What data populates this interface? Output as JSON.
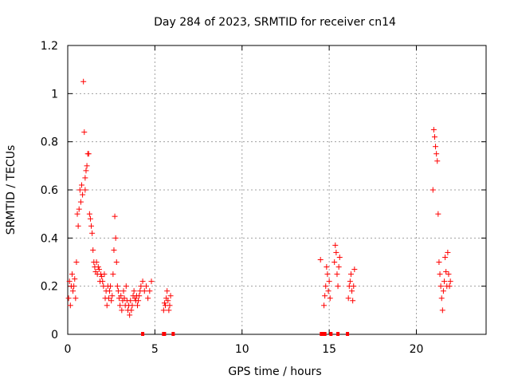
{
  "chart_data": {
    "type": "scatter",
    "title": "Day 284 of 2023, SRMTID for receiver cn14",
    "xlabel": "GPS time / hours",
    "ylabel": "SRMTID / TECUs",
    "xlim": [
      0,
      24
    ],
    "ylim": [
      0,
      1.2
    ],
    "grid": true,
    "legend": "none",
    "marker": "+",
    "marker_color": "#ff0000",
    "x_ticks": [
      0,
      5,
      10,
      15,
      20
    ],
    "x_tick_labels": [
      "0",
      "5",
      "10",
      "15",
      "20"
    ],
    "y_ticks": [
      0,
      0.2,
      0.4,
      0.6,
      0.8,
      1.0,
      1.2
    ],
    "y_tick_labels": [
      "0",
      "0.2",
      "0.4",
      "0.6",
      "0.8",
      "1",
      "1.2"
    ],
    "series": [
      {
        "name": "SRMTID",
        "x": [
          0.05,
          0.1,
          0.15,
          0.2,
          0.25,
          0.3,
          0.35,
          0.4,
          0.45,
          0.5,
          0.55,
          0.6,
          0.65,
          0.7,
          0.75,
          0.8,
          0.85,
          0.9,
          0.95,
          1.0,
          1.0,
          1.05,
          1.1,
          1.15,
          1.2,
          1.25,
          1.3,
          1.35,
          1.4,
          1.45,
          1.5,
          1.55,
          1.6,
          1.65,
          1.7,
          1.75,
          1.8,
          1.85,
          1.9,
          1.95,
          2.0,
          2.05,
          2.1,
          2.15,
          2.2,
          2.25,
          2.3,
          2.35,
          2.4,
          2.45,
          2.5,
          2.55,
          2.6,
          2.65,
          2.7,
          2.75,
          2.8,
          2.85,
          2.9,
          2.95,
          3.0,
          3.05,
          3.1,
          3.15,
          3.2,
          3.25,
          3.3,
          3.35,
          3.4,
          3.45,
          3.5,
          3.55,
          3.6,
          3.65,
          3.7,
          3.75,
          3.8,
          3.85,
          3.9,
          3.95,
          4.0,
          4.05,
          4.1,
          4.15,
          4.2,
          4.3,
          4.4,
          4.5,
          4.6,
          4.7,
          4.8,
          5.5,
          5.55,
          5.6,
          5.65,
          5.7,
          5.75,
          5.8,
          5.85,
          5.9,
          14.5,
          14.7,
          14.75,
          14.8,
          14.85,
          14.9,
          14.95,
          15.0,
          15.05,
          15.3,
          15.35,
          15.4,
          15.45,
          15.5,
          15.55,
          15.6,
          16.1,
          16.15,
          16.2,
          16.25,
          16.3,
          16.35,
          16.4,
          16.45,
          20.95,
          21.0,
          21.05,
          21.1,
          21.15,
          21.2,
          21.25,
          21.3,
          21.35,
          21.4,
          21.45,
          21.5,
          21.55,
          21.6,
          21.65,
          21.7,
          21.75,
          21.8,
          21.85,
          21.9,
          21.95
        ],
        "y": [
          0.15,
          0.22,
          0.12,
          0.2,
          0.25,
          0.18,
          0.2,
          0.23,
          0.15,
          0.3,
          0.5,
          0.45,
          0.52,
          0.6,
          0.55,
          0.62,
          0.58,
          1.05,
          0.84,
          0.65,
          0.6,
          0.68,
          0.7,
          0.75,
          0.75,
          0.5,
          0.48,
          0.45,
          0.42,
          0.35,
          0.3,
          0.28,
          0.26,
          0.3,
          0.25,
          0.28,
          0.27,
          0.22,
          0.25,
          0.24,
          0.22,
          0.2,
          0.25,
          0.15,
          0.18,
          0.12,
          0.2,
          0.15,
          0.18,
          0.2,
          0.14,
          0.16,
          0.25,
          0.35,
          0.49,
          0.4,
          0.3,
          0.2,
          0.18,
          0.15,
          0.12,
          0.16,
          0.1,
          0.14,
          0.18,
          0.15,
          0.12,
          0.2,
          0.14,
          0.1,
          0.12,
          0.08,
          0.14,
          0.1,
          0.12,
          0.16,
          0.18,
          0.15,
          0.14,
          0.16,
          0.12,
          0.14,
          0.16,
          0.18,
          0.2,
          0.22,
          0.18,
          0.2,
          0.15,
          0.18,
          0.22,
          0.1,
          0.13,
          0.12,
          0.15,
          0.18,
          0.14,
          0.1,
          0.12,
          0.16,
          0.31,
          0.12,
          0.16,
          0.2,
          0.28,
          0.25,
          0.18,
          0.22,
          0.15,
          0.3,
          0.37,
          0.34,
          0.25,
          0.2,
          0.28,
          0.32,
          0.15,
          0.2,
          0.22,
          0.25,
          0.18,
          0.14,
          0.2,
          0.27,
          0.6,
          0.85,
          0.82,
          0.78,
          0.75,
          0.72,
          0.5,
          0.3,
          0.25,
          0.2,
          0.15,
          0.1,
          0.18,
          0.22,
          0.32,
          0.26,
          0.2,
          0.34,
          0.25,
          0.2,
          0.22
        ],
        "zeros_x": [
          4.3,
          5.5,
          5.55,
          6.05,
          14.55,
          14.6,
          14.65,
          14.75,
          15.1,
          15.5,
          16.05
        ]
      }
    ]
  }
}
